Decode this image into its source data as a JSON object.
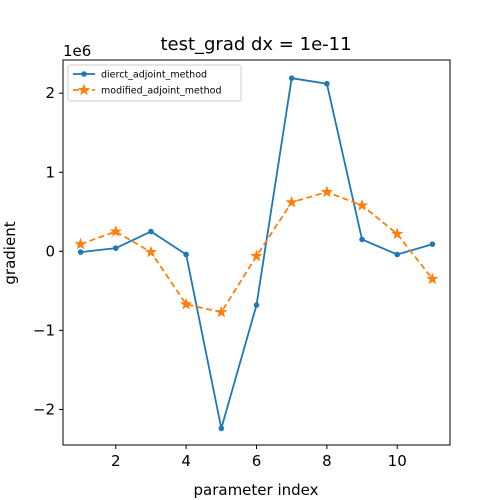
{
  "chart_data": {
    "type": "line",
    "title": "test_grad dx = 1e-11",
    "xlabel": "parameter index",
    "ylabel": "gradient",
    "y_scale_label": "1e6",
    "x": [
      1,
      2,
      3,
      4,
      5,
      6,
      7,
      8,
      9,
      10,
      11
    ],
    "xlim": [
      0.5,
      11.5
    ],
    "ylim": [
      -2.45,
      2.42
    ],
    "xticks": [
      2,
      4,
      6,
      8,
      10
    ],
    "xtick_labels": [
      "2",
      "4",
      "6",
      "8",
      "10"
    ],
    "yticks": [
      -2,
      -1,
      0,
      1,
      2
    ],
    "ytick_labels": [
      "−2",
      "−1",
      "0",
      "1",
      "2"
    ],
    "grid": false,
    "legend_position": "top-left",
    "series": [
      {
        "name": "dierct_adjoint_method",
        "color": "#1f77b4",
        "line_style": "solid",
        "marker": "dot",
        "values": [
          -0.01,
          0.04,
          0.25,
          -0.04,
          -2.24,
          -0.68,
          2.19,
          2.12,
          0.15,
          -0.04,
          0.09
        ]
      },
      {
        "name": "modified_adjoint_method",
        "color": "#ff7f0e",
        "line_style": "dashed",
        "marker": "star",
        "values": [
          0.09,
          0.25,
          -0.01,
          -0.67,
          -0.77,
          -0.06,
          0.62,
          0.75,
          0.58,
          0.22,
          -0.35
        ]
      }
    ]
  }
}
